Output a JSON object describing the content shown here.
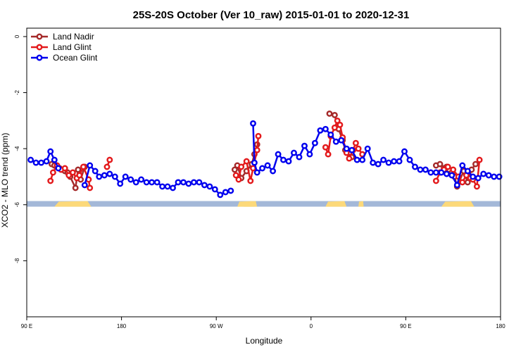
{
  "chart_data": {
    "type": "line",
    "title": "25S-20S October (Ver 10_raw)   2015-01-01 to 2020-12-31",
    "xlabel": "Longitude",
    "ylabel": "XCO2 - MLO trend (ppm)",
    "xlim": [
      90,
      450
    ],
    "ylim": [
      -10,
      0.3
    ],
    "x_ticks": [
      {
        "value": 90,
        "label": "90 E"
      },
      {
        "value": 162,
        "label": "180"
      },
      {
        "value": 234,
        "label": "90 W"
      },
      {
        "value": 306,
        "label": "0"
      },
      {
        "value": 378,
        "label": "90 E"
      },
      {
        "value": 450,
        "label": "180"
      }
    ],
    "y_ticks": [
      {
        "value": 0,
        "label": "0"
      },
      {
        "value": -2,
        "label": "-2"
      },
      {
        "value": -4,
        "label": "-4"
      },
      {
        "value": -6,
        "label": "-6"
      },
      {
        "value": -8,
        "label": "-8"
      }
    ],
    "legend_position": "top-left",
    "grid": false,
    "land_mask": {
      "y_top": -5.87,
      "y_bottom": -6.07,
      "ocean_color": "#a3b8d8",
      "land_color": "#fcd97a",
      "land_segments": [
        [
          111,
          139
        ],
        [
          250,
          263
        ],
        [
          255,
          265
        ],
        [
          317,
          333
        ],
        [
          342,
          346
        ],
        [
          405,
          430
        ]
      ]
    },
    "series": [
      {
        "name": "Land Nadir",
        "color": "#a52a2a",
        "x": [
          109,
          111,
          113,
          115,
          117,
          119,
          121,
          123,
          127,
          129,
          131,
          134,
          248,
          250,
          253,
          257,
          261,
          263,
          265,
          320,
          324,
          327,
          330,
          332,
          335,
          337,
          401,
          404,
          407,
          409,
          411,
          413,
          415,
          417,
          422,
          425,
          428,
          431
        ],
        "y": [
          -4.55,
          -4.6,
          -4.65,
          -4.7,
          -4.75,
          -4.8,
          -4.85,
          -5.0,
          -5.4,
          -4.75,
          -5.1,
          -4.65,
          -4.75,
          -4.6,
          -5.05,
          -4.8,
          -4.55,
          -4.2,
          -3.85,
          -2.75,
          -2.8,
          -3.3,
          -3.7,
          -4.05,
          -4.15,
          -4.3,
          -4.6,
          -4.55,
          -4.7,
          -4.65,
          -4.75,
          -4.85,
          -5.0,
          -5.35,
          -4.8,
          -5.2,
          -4.75,
          -4.55
        ],
        "segments": [
          [
            0,
            11
          ],
          [
            12,
            18
          ],
          [
            19,
            25
          ],
          [
            26,
            37
          ]
        ]
      },
      {
        "name": "Land Glint",
        "color": "#e31a1c",
        "x": [
          108,
          110,
          113,
          116,
          119,
          122,
          125,
          128,
          130,
          133,
          137,
          138,
          151,
          153,
          249,
          251,
          253,
          257,
          260,
          262,
          265,
          266,
          317,
          319,
          321,
          324,
          326,
          328,
          330,
          333,
          335,
          338,
          340,
          342,
          345,
          401,
          404,
          407,
          410,
          414,
          418,
          421,
          424,
          427,
          429,
          432,
          434
        ],
        "y": [
          -5.15,
          -4.85,
          -4.6,
          -4.75,
          -4.7,
          -4.95,
          -4.85,
          -5.05,
          -4.95,
          -4.65,
          -5.1,
          -5.4,
          -4.65,
          -4.4,
          -4.95,
          -5.1,
          -4.65,
          -4.45,
          -5.15,
          -4.7,
          -4.05,
          -3.55,
          -3.95,
          -4.2,
          -3.55,
          -3.25,
          -3.0,
          -3.15,
          -3.6,
          -4.15,
          -4.35,
          -4.05,
          -3.8,
          -4.0,
          -4.2,
          -5.15,
          -4.85,
          -4.75,
          -4.65,
          -4.75,
          -5.0,
          -5.2,
          -4.95,
          -5.05,
          -5.1,
          -5.35,
          -4.4
        ],
        "segments": [
          [
            0,
            11
          ],
          [
            12,
            13
          ],
          [
            14,
            21
          ],
          [
            22,
            34
          ],
          [
            35,
            46
          ]
        ]
      },
      {
        "name": "Ocean Glint",
        "color": "#0000ee",
        "x": [
          93,
          97,
          101,
          105,
          108,
          111,
          114,
          134,
          138,
          142,
          145,
          149,
          153,
          157,
          161,
          165,
          169,
          173,
          177,
          181,
          185,
          189,
          193,
          197,
          201,
          205,
          209,
          213,
          217,
          221,
          225,
          229,
          233,
          237,
          241,
          245,
          262,
          263,
          265,
          269,
          273,
          277,
          281,
          285,
          289,
          293,
          297,
          301,
          305,
          309,
          313,
          317,
          321,
          325,
          329,
          333,
          337,
          341,
          345,
          349,
          353,
          357,
          361,
          365,
          369,
          373,
          377,
          381,
          385,
          389,
          393,
          397,
          401,
          405,
          409,
          413,
          417,
          421,
          425,
          429,
          433,
          437,
          441,
          445,
          449
        ],
        "y": [
          -4.4,
          -4.5,
          -4.5,
          -4.45,
          -4.1,
          -4.4,
          -4.7,
          -5.3,
          -4.6,
          -4.8,
          -5.0,
          -4.95,
          -4.9,
          -5.0,
          -5.25,
          -5.0,
          -5.1,
          -5.2,
          -5.1,
          -5.2,
          -5.2,
          -5.2,
          -5.35,
          -5.35,
          -5.4,
          -5.2,
          -5.2,
          -5.25,
          -5.2,
          -5.2,
          -5.3,
          -5.35,
          -5.45,
          -5.65,
          -5.55,
          -5.5,
          -3.1,
          -4.5,
          -4.85,
          -4.7,
          -4.6,
          -4.8,
          -4.2,
          -4.4,
          -4.45,
          -4.15,
          -4.3,
          -3.9,
          -4.2,
          -3.8,
          -3.35,
          -3.3,
          -3.5,
          -3.75,
          -3.7,
          -4.0,
          -4.05,
          -4.4,
          -4.4,
          -4.0,
          -4.5,
          -4.55,
          -4.4,
          -4.5,
          -4.45,
          -4.45,
          -4.1,
          -4.4,
          -4.65,
          -4.75,
          -4.75,
          -4.85,
          -4.85,
          -4.85,
          -4.9,
          -4.95,
          -5.3,
          -4.6,
          -4.8,
          -5.0,
          -5.05,
          -4.9,
          -4.95,
          -5.0,
          -5.0
        ],
        "segments": [
          [
            0,
            6
          ],
          [
            7,
            35
          ],
          [
            36,
            84
          ]
        ]
      }
    ]
  }
}
